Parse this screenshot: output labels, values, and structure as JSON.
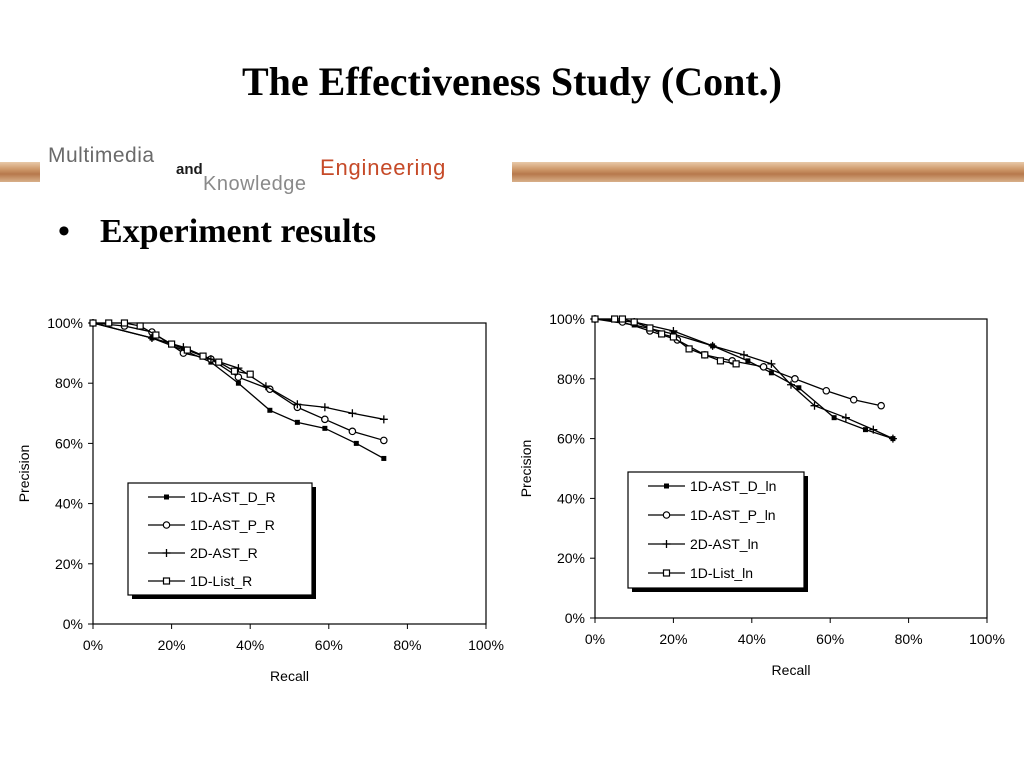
{
  "slide": {
    "title": "The Effectiveness Study (Cont.)",
    "banner": {
      "word1": "Multimedia",
      "word2": "and",
      "word3": "Knowledge",
      "word4": "Engineering"
    },
    "bullet": "Experiment results"
  },
  "chart_data": [
    {
      "type": "line",
      "xlabel": "Recall",
      "ylabel": "Precision",
      "xlim": [
        0,
        100
      ],
      "ylim": [
        0,
        100
      ],
      "xticks": [
        "0%",
        "20%",
        "40%",
        "60%",
        "80%",
        "100%"
      ],
      "yticks": [
        "0%",
        "20%",
        "40%",
        "60%",
        "80%",
        "100%"
      ],
      "grid": false,
      "legend_position": "lower-left",
      "series": [
        {
          "name": "1D-AST_D_R",
          "marker": "square-filled",
          "x": [
            0,
            15,
            23,
            30,
            37,
            45,
            52,
            59,
            67,
            74
          ],
          "y": [
            100,
            95,
            91,
            87,
            80,
            71,
            67,
            65,
            60,
            55
          ]
        },
        {
          "name": "1D-AST_P_R",
          "marker": "circle",
          "x": [
            0,
            8,
            15,
            23,
            30,
            37,
            45,
            52,
            59,
            66,
            74
          ],
          "y": [
            100,
            99,
            97,
            90,
            88,
            82,
            78,
            72,
            68,
            64,
            61
          ]
        },
        {
          "name": "2D-AST_R",
          "marker": "plus",
          "x": [
            0,
            15,
            23,
            30,
            37,
            44,
            52,
            59,
            66,
            74
          ],
          "y": [
            100,
            95,
            92,
            88,
            85,
            79,
            73,
            72,
            70,
            68
          ]
        },
        {
          "name": "1D-List_R",
          "marker": "square",
          "x": [
            0,
            4,
            8,
            12,
            16,
            20,
            24,
            28,
            32,
            36,
            40
          ],
          "y": [
            100,
            100,
            100,
            99,
            96,
            93,
            91,
            89,
            87,
            84,
            83
          ]
        }
      ]
    },
    {
      "type": "line",
      "xlabel": "Recall",
      "ylabel": "Precision",
      "xlim": [
        0,
        100
      ],
      "ylim": [
        0,
        100
      ],
      "xticks": [
        "0%",
        "20%",
        "40%",
        "60%",
        "80%",
        "100%"
      ],
      "yticks": [
        "0%",
        "20%",
        "40%",
        "60%",
        "80%",
        "100%"
      ],
      "grid": false,
      "legend_position": "lower-left",
      "series": [
        {
          "name": "1D-AST_D_ln",
          "marker": "square-filled",
          "x": [
            0,
            10,
            20,
            30,
            39,
            45,
            52,
            61,
            69,
            76
          ],
          "y": [
            100,
            98,
            95,
            91,
            86,
            82,
            77,
            67,
            63,
            60
          ]
        },
        {
          "name": "1D-AST_P_ln",
          "marker": "circle",
          "x": [
            0,
            7,
            14,
            21,
            28,
            35,
            43,
            51,
            59,
            66,
            73
          ],
          "y": [
            100,
            99,
            96,
            93,
            88,
            86,
            84,
            80,
            76,
            73,
            71
          ]
        },
        {
          "name": "2D-AST_ln",
          "marker": "plus",
          "x": [
            0,
            10,
            20,
            30,
            38,
            45,
            50,
            56,
            64,
            71,
            76
          ],
          "y": [
            100,
            99,
            96,
            91,
            88,
            85,
            78,
            71,
            67,
            63,
            60
          ]
        },
        {
          "name": "1D-List_ln",
          "marker": "square",
          "x": [
            0,
            5,
            7,
            10,
            14,
            17,
            20,
            24,
            28,
            32,
            36
          ],
          "y": [
            100,
            100,
            100,
            99,
            97,
            95,
            94,
            90,
            88,
            86,
            85
          ]
        }
      ]
    }
  ]
}
